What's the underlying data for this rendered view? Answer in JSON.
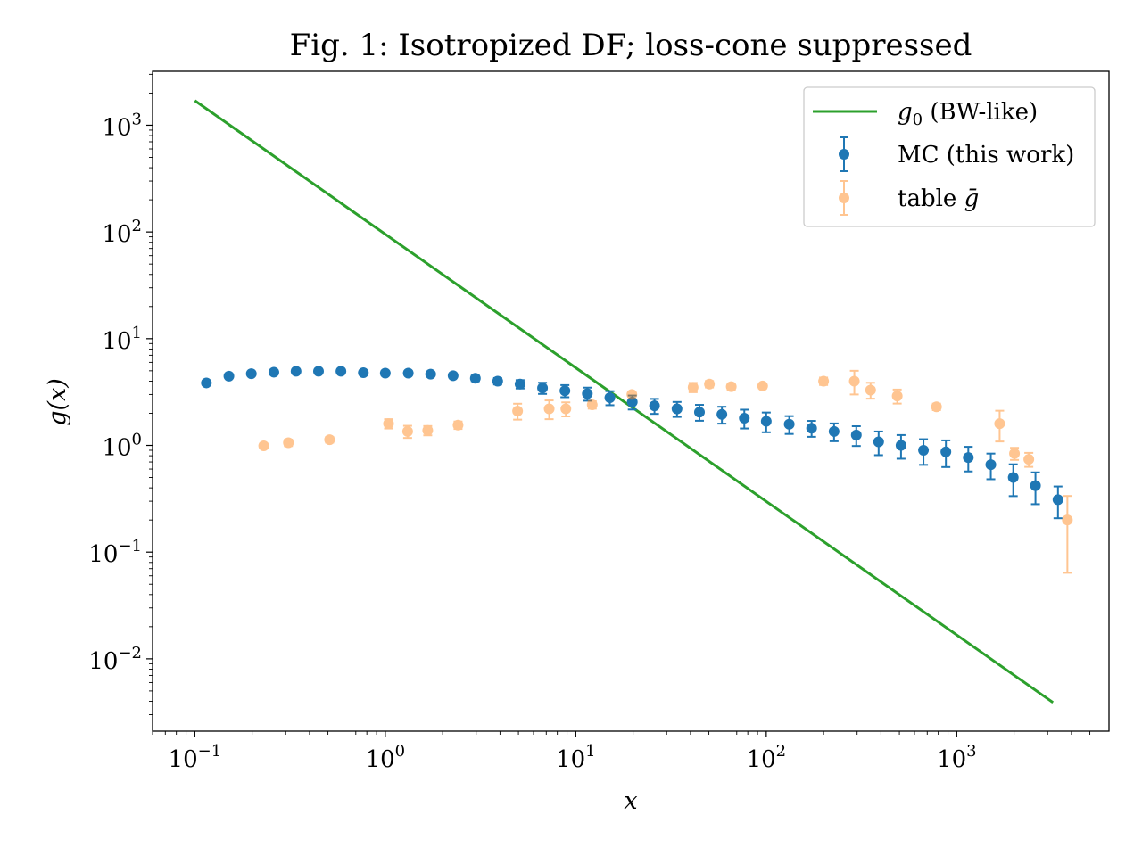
{
  "chart_data": {
    "type": "scatter",
    "title": "Fig. 1: Isotropized DF; loss-cone suppressed",
    "xlabel": "x",
    "ylabel": "g(x)",
    "xscale": "log",
    "yscale": "log",
    "xlim": [
      0.06,
      6300
    ],
    "ylim": [
      0.0021,
      3200
    ],
    "xticks": [
      {
        "base": "10",
        "exp": "−1",
        "value": 0.1
      },
      {
        "base": "10",
        "exp": "0",
        "value": 1
      },
      {
        "base": "10",
        "exp": "1",
        "value": 10
      },
      {
        "base": "10",
        "exp": "2",
        "value": 100
      },
      {
        "base": "10",
        "exp": "3",
        "value": 1000
      }
    ],
    "yticks": [
      {
        "base": "10",
        "exp": "−2",
        "value": 0.01
      },
      {
        "base": "10",
        "exp": "−1",
        "value": 0.1
      },
      {
        "base": "10",
        "exp": "0",
        "value": 1
      },
      {
        "base": "10",
        "exp": "1",
        "value": 10
      },
      {
        "base": "10",
        "exp": "2",
        "value": 100
      },
      {
        "base": "10",
        "exp": "3",
        "value": 1000
      }
    ],
    "legend": {
      "placement": "top-right",
      "entries": [
        {
          "prefix": "g",
          "sub": "0",
          "suffix": " (BW-like)"
        },
        {
          "prefix": "MC (this work)",
          "sub": "",
          "suffix": ""
        },
        {
          "prefix": "table ",
          "sub": "",
          "suffix": "ḡ",
          "suffix_italic": true
        }
      ]
    },
    "series": [
      {
        "name": "g0 (BW-like)",
        "kind": "line",
        "color": "#2ca02c",
        "x": [
          0.1,
          3200
        ],
        "y": [
          1700,
          0.0039
        ]
      },
      {
        "name": "MC (this work)",
        "kind": "errorbar",
        "color": "#1f77b4",
        "x": [
          0.115,
          0.151,
          0.198,
          0.26,
          0.34,
          0.446,
          0.585,
          0.767,
          1.0,
          1.32,
          1.73,
          2.27,
          2.97,
          3.89,
          5.1,
          6.69,
          8.77,
          11.5,
          15.1,
          19.8,
          25.9,
          34.0,
          44.6,
          58.5,
          76.7,
          100,
          132,
          173,
          227,
          297,
          389,
          510,
          669,
          877,
          1150,
          1510,
          1980,
          2590,
          3400
        ],
        "y": [
          3.85,
          4.45,
          4.7,
          4.85,
          4.95,
          4.95,
          4.95,
          4.8,
          4.75,
          4.75,
          4.65,
          4.5,
          4.25,
          4.0,
          3.75,
          3.45,
          3.25,
          3.05,
          2.8,
          2.55,
          2.35,
          2.2,
          2.05,
          1.95,
          1.8,
          1.68,
          1.58,
          1.45,
          1.35,
          1.25,
          1.08,
          1.0,
          0.9,
          0.87,
          0.77,
          0.66,
          0.5,
          0.42,
          0.31
        ],
        "yerr_rel": [
          0.03,
          0.03,
          0.03,
          0.03,
          0.03,
          0.03,
          0.03,
          0.03,
          0.03,
          0.03,
          0.03,
          0.04,
          0.06,
          0.07,
          0.09,
          0.12,
          0.13,
          0.14,
          0.15,
          0.15,
          0.16,
          0.16,
          0.17,
          0.18,
          0.2,
          0.21,
          0.19,
          0.17,
          0.19,
          0.21,
          0.25,
          0.25,
          0.27,
          0.28,
          0.26,
          0.27,
          0.33,
          0.33,
          0.33
        ]
      },
      {
        "name": "table ḡ",
        "kind": "errorbar",
        "color": "#ff7f0e",
        "alpha": 0.45,
        "x": [
          0.23,
          0.31,
          0.51,
          1.04,
          1.31,
          1.67,
          2.41,
          4.95,
          7.25,
          8.87,
          12.2,
          19.7,
          41.3,
          50.3,
          65.5,
          95.7,
          200,
          290,
          353,
          487,
          783,
          1680,
          2010,
          2390,
          3810
        ],
        "y": [
          0.99,
          1.06,
          1.13,
          1.6,
          1.35,
          1.38,
          1.55,
          2.1,
          2.2,
          2.2,
          2.4,
          3.0,
          3.5,
          3.75,
          3.55,
          3.6,
          4.0,
          4.0,
          3.3,
          2.9,
          2.3,
          1.6,
          0.84,
          0.74,
          0.2
        ],
        "yerr_rel": [
          0.05,
          0.07,
          0.06,
          0.1,
          0.13,
          0.1,
          0.08,
          0.17,
          0.2,
          0.15,
          0.08,
          0.05,
          0.1,
          0.07,
          0.07,
          0.05,
          0.08,
          0.25,
          0.17,
          0.15,
          0.07,
          0.32,
          0.13,
          0.15,
          0.68
        ]
      }
    ]
  }
}
